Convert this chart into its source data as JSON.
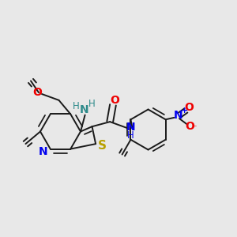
{
  "bg_color": "#e8e8e8",
  "bond_color": "#1a1a1a",
  "lw": 1.4,
  "N_py_color": "#0000ee",
  "N_amide_color": "#0000ee",
  "N_amino_color": "#2e8b8b",
  "N_nitro_color": "#0000ee",
  "S_color": "#b8a000",
  "O_color": "#ee0000",
  "text_color": "#1a1a1a",
  "plus_color": "#0000ee",
  "minus_color": "#ee0000",
  "xlim": [
    0.0,
    1.0
  ],
  "ylim": [
    0.15,
    0.95
  ]
}
